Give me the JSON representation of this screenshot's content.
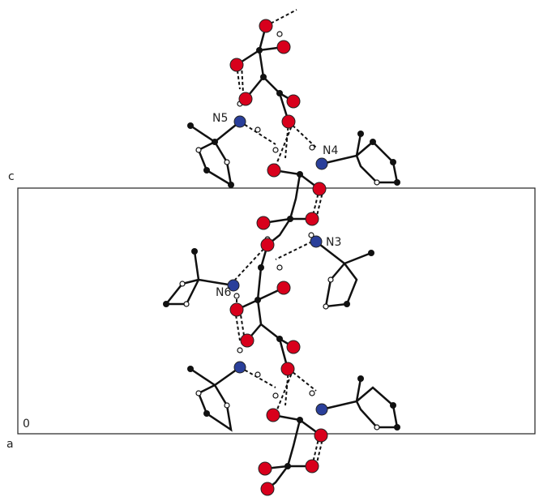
{
  "axes": {
    "c": "c",
    "a": "a",
    "origin": "0"
  },
  "atoms": {
    "n3": "N3",
    "n4": "N4",
    "n5": "N5",
    "n6": "N6"
  }
}
